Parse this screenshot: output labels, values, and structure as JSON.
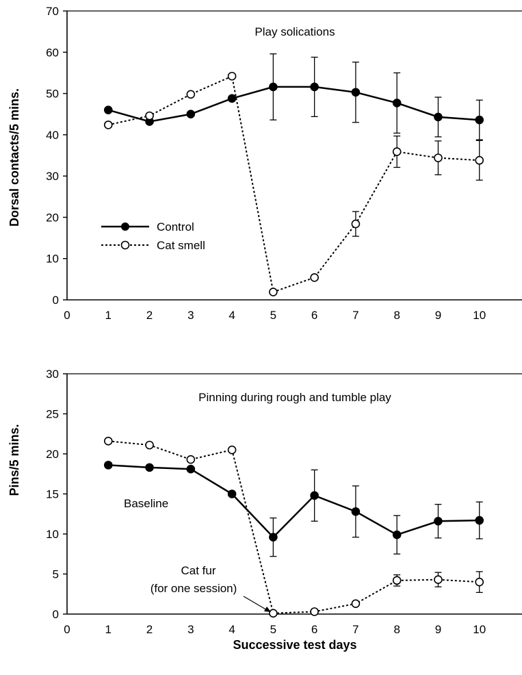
{
  "xlabel": "Successive test days",
  "legend": {
    "control": "Control",
    "cat": "Cat smell"
  },
  "chart_data": [
    {
      "type": "line",
      "title": "Play solications",
      "ylabel": "Dorsal contacts/5 mins.",
      "xlim": [
        0,
        11
      ],
      "ylim": [
        0,
        70
      ],
      "xticks": [
        0,
        1,
        2,
        3,
        4,
        5,
        6,
        7,
        8,
        9,
        10
      ],
      "yticks": [
        0,
        10,
        20,
        30,
        40,
        50,
        60,
        70
      ],
      "legend_position": "center-left",
      "series": [
        {
          "name": "Control",
          "style": "solid-filled",
          "color": "#000000",
          "x": [
            1,
            2,
            3,
            4,
            5,
            6,
            7,
            8,
            9,
            10
          ],
          "y": [
            46,
            43.2,
            45,
            48.8,
            51.6,
            51.6,
            50.3,
            47.7,
            44.3,
            43.6
          ],
          "err": [
            null,
            null,
            null,
            null,
            8,
            7.2,
            7.3,
            7.3,
            4.8,
            4.8
          ]
        },
        {
          "name": "Cat smell",
          "style": "dotted-open",
          "color": "#000000",
          "x": [
            1,
            2,
            3,
            4,
            5,
            6,
            7,
            8,
            9,
            10
          ],
          "y": [
            42.4,
            44.6,
            49.8,
            54.2,
            1.9,
            5.4,
            18.4,
            35.9,
            34.4,
            33.8
          ],
          "err": [
            null,
            null,
            null,
            null,
            null,
            null,
            3,
            3.8,
            4.1,
            4.8
          ]
        }
      ]
    },
    {
      "type": "line",
      "title": "Pinning during rough and tumble play",
      "ylabel": "Pins/5 mins.",
      "xlim": [
        0,
        11
      ],
      "ylim": [
        0,
        30
      ],
      "xticks": [
        0,
        1,
        2,
        3,
        4,
        5,
        6,
        7,
        8,
        9,
        10
      ],
      "yticks": [
        0,
        5,
        10,
        15,
        20,
        25,
        30
      ],
      "annotations": [
        "Baseline",
        "Cat fur",
        "(for one session)"
      ],
      "series": [
        {
          "name": "Control",
          "style": "solid-filled",
          "color": "#000000",
          "x": [
            1,
            2,
            3,
            4,
            5,
            6,
            7,
            8,
            9,
            10
          ],
          "y": [
            18.6,
            18.3,
            18.1,
            15.0,
            9.6,
            14.8,
            12.8,
            9.9,
            11.6,
            11.7
          ],
          "err": [
            null,
            null,
            null,
            null,
            2.4,
            3.2,
            3.2,
            2.4,
            2.1,
            2.3
          ]
        },
        {
          "name": "Cat smell",
          "style": "dotted-open",
          "color": "#000000",
          "x": [
            1,
            2,
            3,
            4,
            5,
            6,
            7,
            8,
            9,
            10
          ],
          "y": [
            21.6,
            21.1,
            19.3,
            20.5,
            0.1,
            0.3,
            1.3,
            4.2,
            4.3,
            4.0
          ],
          "err": [
            null,
            null,
            null,
            null,
            null,
            null,
            null,
            0.7,
            0.9,
            1.3
          ]
        }
      ]
    }
  ]
}
